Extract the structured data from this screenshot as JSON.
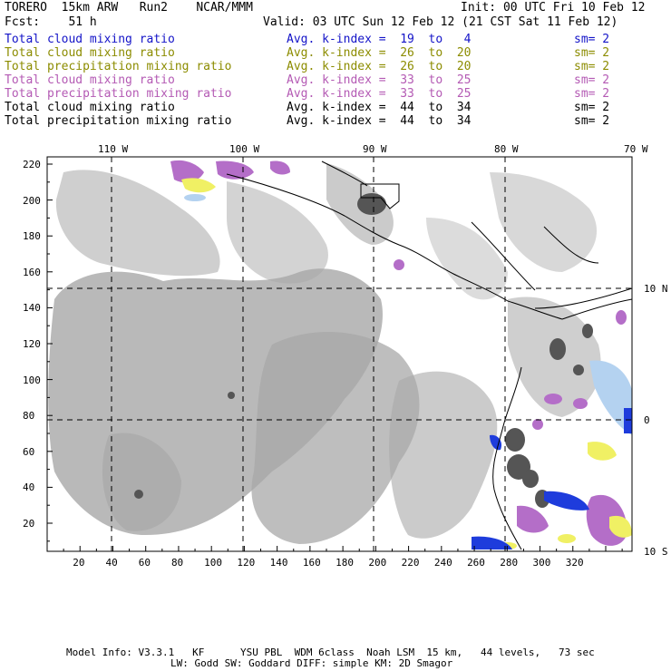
{
  "header": {
    "left1": "TORERO  15km ARW   Run2    NCAR/MMM",
    "left2": "Fcst:    51 h",
    "right1": "Init: 00 UTC Fri 10 Feb 12",
    "right2": "Valid: 03 UTC Sun 12 Feb 12 (21 CST Sat 11 Feb 12)"
  },
  "legend": [
    {
      "field": "Total cloud mixing ratio",
      "index": "Avg. k-index =  19  to   4",
      "sm": "sm= 2",
      "color": "#1414c8"
    },
    {
      "field": "Total cloud mixing ratio",
      "index": "Avg. k-index =  26  to  20",
      "sm": "sm= 2",
      "color": "#8c8c00"
    },
    {
      "field": "Total precipitation mixing ratio",
      "index": "Avg. k-index =  26  to  20",
      "sm": "sm= 2",
      "color": "#8c8c00"
    },
    {
      "field": "Total cloud mixing ratio",
      "index": "Avg. k-index =  33  to  25",
      "sm": "sm= 2",
      "color": "#b45ab4"
    },
    {
      "field": "Total precipitation mixing ratio",
      "index": "Avg. k-index =  33  to  25",
      "sm": "sm= 2",
      "color": "#b45ab4"
    },
    {
      "field": "Total cloud mixing ratio",
      "index": "Avg. k-index =  44  to  34",
      "sm": "sm= 2",
      "color": "#000000"
    },
    {
      "field": "Total precipitation mixing ratio",
      "index": "Avg. k-index =  44  to  34",
      "sm": "sm= 2",
      "color": "#000000"
    }
  ],
  "map": {
    "lon_labels": [
      "110 W",
      "100 W",
      "90 W",
      "80 W",
      "70 W"
    ],
    "lat_labels": [
      "10 N",
      "0",
      "10 S"
    ],
    "x_ticks": [
      "20",
      "40",
      "60",
      "80",
      "100",
      "120",
      "140",
      "160",
      "180",
      "200",
      "220",
      "240",
      "260",
      "280",
      "300",
      "320"
    ],
    "y_ticks": [
      "220",
      "200",
      "180",
      "160",
      "140",
      "120",
      "100",
      "80",
      "60",
      "40",
      "20"
    ],
    "colors": {
      "cloud_gray": "#a8a8a8",
      "dark_gray": "#555555",
      "purple": "#b46ec8",
      "yellow": "#f0f064",
      "blue": "#1e3cdc",
      "light_blue": "#b4d2f0"
    }
  },
  "footer": {
    "line1": "Model Info: V3.3.1   KF      YSU PBL  WDM 6class  Noah LSM  15 km,   44 levels,   73 sec",
    "line2": "LW: Godd SW: Goddard DIFF: simple KM: 2D Smagor"
  }
}
